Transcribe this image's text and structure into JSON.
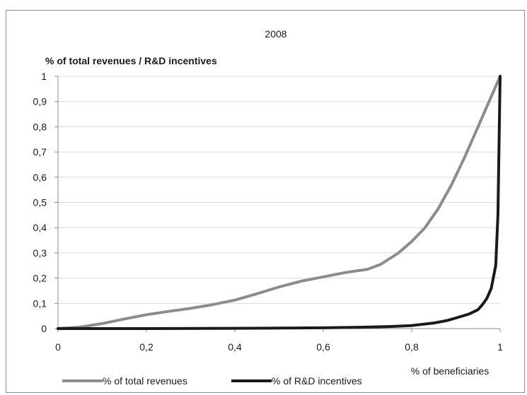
{
  "chart_data": {
    "type": "line",
    "title": "2008",
    "ylabel": "% of total revenues / R&D incentives",
    "xlabel": "% of beneficiaries",
    "xlim": [
      0,
      1
    ],
    "ylim": [
      0,
      1
    ],
    "x_ticks": [
      "0",
      "0,2",
      "0,4",
      "0,6",
      "0,8",
      "1"
    ],
    "x_tick_values": [
      0,
      0.2,
      0.4,
      0.6,
      0.8,
      1
    ],
    "y_ticks": [
      "0",
      "0,1",
      "0,2",
      "0,3",
      "0,4",
      "0,5",
      "0,6",
      "0,7",
      "0,8",
      "0,9",
      "1"
    ],
    "y_tick_values": [
      0,
      0.1,
      0.2,
      0.3,
      0.4,
      0.5,
      0.6,
      0.7,
      0.8,
      0.9,
      1
    ],
    "grid": "horizontal",
    "legend_position": "bottom",
    "series": [
      {
        "name": "% of total revenues",
        "color": "#8c8c8c",
        "points": [
          [
            0,
            0
          ],
          [
            0.05,
            0.006
          ],
          [
            0.1,
            0.02
          ],
          [
            0.15,
            0.038
          ],
          [
            0.2,
            0.055
          ],
          [
            0.25,
            0.068
          ],
          [
            0.3,
            0.08
          ],
          [
            0.35,
            0.095
          ],
          [
            0.4,
            0.113
          ],
          [
            0.45,
            0.138
          ],
          [
            0.5,
            0.165
          ],
          [
            0.55,
            0.188
          ],
          [
            0.6,
            0.205
          ],
          [
            0.65,
            0.222
          ],
          [
            0.7,
            0.235
          ],
          [
            0.73,
            0.255
          ],
          [
            0.77,
            0.3
          ],
          [
            0.8,
            0.345
          ],
          [
            0.83,
            0.4
          ],
          [
            0.86,
            0.475
          ],
          [
            0.89,
            0.57
          ],
          [
            0.92,
            0.68
          ],
          [
            0.95,
            0.8
          ],
          [
            0.98,
            0.92
          ],
          [
            1,
            1
          ]
        ]
      },
      {
        "name": "% of R&D incentives",
        "color": "#1a1a1a",
        "points": [
          [
            0,
            0
          ],
          [
            0.2,
            0
          ],
          [
            0.4,
            0.001
          ],
          [
            0.6,
            0.003
          ],
          [
            0.7,
            0.006
          ],
          [
            0.75,
            0.008
          ],
          [
            0.8,
            0.012
          ],
          [
            0.85,
            0.022
          ],
          [
            0.88,
            0.032
          ],
          [
            0.9,
            0.042
          ],
          [
            0.93,
            0.058
          ],
          [
            0.95,
            0.075
          ],
          [
            0.96,
            0.095
          ],
          [
            0.97,
            0.12
          ],
          [
            0.98,
            0.16
          ],
          [
            0.99,
            0.25
          ],
          [
            0.995,
            0.45
          ],
          [
            1,
            1
          ]
        ]
      }
    ]
  }
}
